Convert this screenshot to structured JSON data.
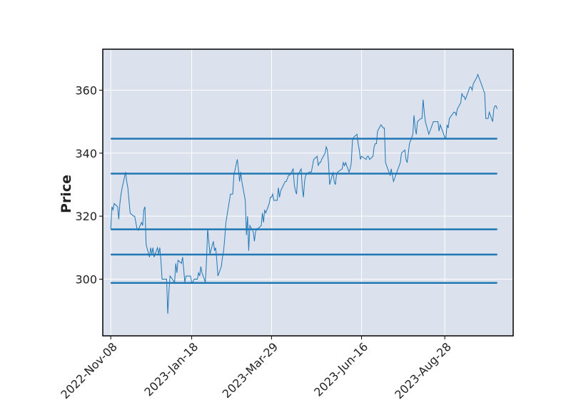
{
  "chart_data": {
    "type": "line",
    "title": "",
    "xlabel": "",
    "ylabel": "Price",
    "x_tick_labels": [
      "2022-Nov-08",
      "2023-Jan-18",
      "2023-Mar-29",
      "2023-Jun-16",
      "2023-Aug-28"
    ],
    "xlim": [
      "2022-Nov-01",
      "2023-Oct-27"
    ],
    "ylim": [
      282,
      373
    ],
    "y_ticks": [
      300,
      320,
      340,
      360
    ],
    "grid": true,
    "colors": {
      "plot_background": "#dce1ee",
      "line": "#1f77b4",
      "grid": "#ffffff",
      "frame": "#000000"
    },
    "series": [
      {
        "values": [
          [
            "2022-Nov-08",
            316
          ],
          [
            "2022-Nov-09",
            323
          ],
          [
            "2022-Nov-10",
            322
          ],
          [
            "2022-Nov-11",
            324
          ],
          [
            "2022-Nov-14",
            323
          ],
          [
            "2022-Nov-15",
            319
          ],
          [
            "2022-Nov-16",
            324
          ],
          [
            "2022-Nov-17",
            327
          ],
          [
            "2022-Nov-18",
            329
          ],
          [
            "2022-Nov-21",
            334
          ],
          [
            "2022-Nov-22",
            331
          ],
          [
            "2022-Nov-23",
            329
          ],
          [
            "2022-Nov-25",
            321
          ],
          [
            "2022-Nov-28",
            320
          ],
          [
            "2022-Nov-29",
            320
          ],
          [
            "2022-Nov-30",
            318
          ],
          [
            "2022-Dec-01",
            316
          ],
          [
            "2022-Dec-02",
            315.5
          ],
          [
            "2022-Dec-05",
            318
          ],
          [
            "2022-Dec-06",
            317
          ],
          [
            "2022-Dec-07",
            322
          ],
          [
            "2022-Dec-08",
            323
          ],
          [
            "2022-Dec-09",
            311
          ],
          [
            "2022-Dec-12",
            307
          ],
          [
            "2022-Dec-13",
            310
          ],
          [
            "2022-Dec-14",
            308
          ],
          [
            "2022-Dec-15",
            310
          ],
          [
            "2022-Dec-16",
            307
          ],
          [
            "2022-Dec-19",
            310
          ],
          [
            "2022-Dec-20",
            308
          ],
          [
            "2022-Dec-21",
            310
          ],
          [
            "2022-Dec-22",
            306
          ],
          [
            "2022-Dec-23",
            300
          ],
          [
            "2022-Dec-27",
            300
          ],
          [
            "2022-Dec-28",
            289
          ],
          [
            "2022-Dec-29",
            296
          ],
          [
            "2022-Dec-30",
            301
          ],
          [
            "2023-Jan-03",
            299
          ],
          [
            "2023-Jan-04",
            305
          ],
          [
            "2023-Jan-05",
            302
          ],
          [
            "2023-Jan-06",
            306
          ],
          [
            "2023-Jan-09",
            305
          ],
          [
            "2023-Jan-10",
            307
          ],
          [
            "2023-Jan-11",
            303
          ],
          [
            "2023-Jan-12",
            299
          ],
          [
            "2023-Jan-13",
            301
          ],
          [
            "2023-Jan-17",
            301
          ],
          [
            "2023-Jan-18",
            299
          ],
          [
            "2023-Jan-19",
            299
          ],
          [
            "2023-Jan-20",
            300
          ],
          [
            "2023-Jan-23",
            300
          ],
          [
            "2023-Jan-24",
            302
          ],
          [
            "2023-Jan-25",
            301
          ],
          [
            "2023-Jan-26",
            304
          ],
          [
            "2023-Jan-27",
            302
          ],
          [
            "2023-Jan-30",
            299
          ],
          [
            "2023-Jan-31",
            306
          ],
          [
            "2023-Feb-01",
            316
          ],
          [
            "2023-Feb-02",
            312
          ],
          [
            "2023-Feb-03",
            308
          ],
          [
            "2023-Feb-06",
            312
          ],
          [
            "2023-Feb-07",
            309
          ],
          [
            "2023-Feb-08",
            310
          ],
          [
            "2023-Feb-09",
            306
          ],
          [
            "2023-Feb-10",
            301
          ],
          [
            "2023-Feb-13",
            304
          ],
          [
            "2023-Feb-14",
            307
          ],
          [
            "2023-Feb-15",
            309
          ],
          [
            "2023-Feb-16",
            313
          ],
          [
            "2023-Feb-17",
            318
          ],
          [
            "2023-Feb-21",
            327
          ],
          [
            "2023-Feb-22",
            327
          ],
          [
            "2023-Feb-23",
            327
          ],
          [
            "2023-Feb-24",
            333
          ],
          [
            "2023-Feb-27",
            338
          ],
          [
            "2023-Feb-28",
            335
          ],
          [
            "2023-Mar-01",
            331
          ],
          [
            "2023-Mar-02",
            334
          ],
          [
            "2023-Mar-03",
            331
          ],
          [
            "2023-Mar-06",
            325
          ],
          [
            "2023-Mar-07",
            314
          ],
          [
            "2023-Mar-08",
            320
          ],
          [
            "2023-Mar-09",
            309
          ],
          [
            "2023-Mar-10",
            317
          ],
          [
            "2023-Mar-13",
            315
          ],
          [
            "2023-Mar-14",
            312
          ],
          [
            "2023-Mar-15",
            315
          ],
          [
            "2023-Mar-16",
            316
          ],
          [
            "2023-Mar-17",
            316
          ],
          [
            "2023-Mar-20",
            317
          ],
          [
            "2023-Mar-21",
            321
          ],
          [
            "2023-Mar-22",
            318
          ],
          [
            "2023-Mar-23",
            322
          ],
          [
            "2023-Mar-24",
            321
          ],
          [
            "2023-Mar-27",
            324
          ],
          [
            "2023-Mar-28",
            326
          ],
          [
            "2023-Mar-29",
            326
          ],
          [
            "2023-Mar-30",
            327
          ],
          [
            "2023-Mar-31",
            325
          ],
          [
            "2023-Apr-03",
            325
          ],
          [
            "2023-Apr-04",
            329
          ],
          [
            "2023-Apr-05",
            326
          ],
          [
            "2023-Apr-06",
            328
          ],
          [
            "2023-Apr-10",
            331
          ],
          [
            "2023-Apr-11",
            331
          ],
          [
            "2023-Apr-12",
            332
          ],
          [
            "2023-Apr-13",
            333
          ],
          [
            "2023-Apr-14",
            333
          ],
          [
            "2023-Apr-17",
            335
          ],
          [
            "2023-Apr-18",
            330
          ],
          [
            "2023-Apr-19",
            328
          ],
          [
            "2023-Apr-20",
            327
          ],
          [
            "2023-Apr-21",
            333
          ],
          [
            "2023-Apr-24",
            335
          ],
          [
            "2023-Apr-25",
            329
          ],
          [
            "2023-Apr-26",
            326
          ],
          [
            "2023-Apr-27",
            331
          ],
          [
            "2023-Apr-28",
            333
          ],
          [
            "2023-May-01",
            334
          ],
          [
            "2023-May-02",
            334
          ],
          [
            "2023-May-03",
            334
          ],
          [
            "2023-May-04",
            336
          ],
          [
            "2023-May-05",
            338
          ],
          [
            "2023-May-08",
            339
          ],
          [
            "2023-May-09",
            336
          ],
          [
            "2023-May-10",
            337
          ],
          [
            "2023-May-11",
            337
          ],
          [
            "2023-May-12",
            338
          ],
          [
            "2023-May-15",
            340
          ],
          [
            "2023-May-16",
            342
          ],
          [
            "2023-May-17",
            341
          ],
          [
            "2023-May-18",
            337
          ],
          [
            "2023-May-19",
            330
          ],
          [
            "2023-May-22",
            334
          ],
          [
            "2023-May-23",
            331
          ],
          [
            "2023-May-24",
            330
          ],
          [
            "2023-May-25",
            333
          ],
          [
            "2023-May-26",
            334
          ],
          [
            "2023-May-30",
            335
          ],
          [
            "2023-May-31",
            337
          ],
          [
            "2023-Jun-01",
            336
          ],
          [
            "2023-Jun-02",
            337
          ],
          [
            "2023-Jun-05",
            334
          ],
          [
            "2023-Jun-06",
            335
          ],
          [
            "2023-Jun-07",
            337
          ],
          [
            "2023-Jun-08",
            344
          ],
          [
            "2023-Jun-09",
            345
          ],
          [
            "2023-Jun-12",
            346
          ],
          [
            "2023-Jun-13",
            343
          ],
          [
            "2023-Jun-14",
            341
          ],
          [
            "2023-Jun-15",
            338
          ],
          [
            "2023-Jun-16",
            339
          ],
          [
            "2023-Jun-20",
            338
          ],
          [
            "2023-Jun-21",
            339
          ],
          [
            "2023-Jun-22",
            339
          ],
          [
            "2023-Jun-23",
            338
          ],
          [
            "2023-Jun-26",
            339
          ],
          [
            "2023-Jun-27",
            342
          ],
          [
            "2023-Jun-28",
            343
          ],
          [
            "2023-Jun-29",
            343
          ],
          [
            "2023-Jun-30",
            347
          ],
          [
            "2023-Jul-03",
            349
          ],
          [
            "2023-Jul-05",
            348
          ],
          [
            "2023-Jul-06",
            348
          ],
          [
            "2023-Jul-07",
            337
          ],
          [
            "2023-Jul-10",
            334
          ],
          [
            "2023-Jul-11",
            333
          ],
          [
            "2023-Jul-12",
            335
          ],
          [
            "2023-Jul-13",
            333
          ],
          [
            "2023-Jul-14",
            331
          ],
          [
            "2023-Jul-17",
            334
          ],
          [
            "2023-Jul-18",
            335
          ],
          [
            "2023-Jul-19",
            336
          ],
          [
            "2023-Jul-20",
            337
          ],
          [
            "2023-Jul-21",
            340
          ],
          [
            "2023-Jul-24",
            341
          ],
          [
            "2023-Jul-25",
            338
          ],
          [
            "2023-Jul-26",
            337
          ],
          [
            "2023-Jul-27",
            340
          ],
          [
            "2023-Jul-28",
            343
          ],
          [
            "2023-Jul-31",
            346
          ],
          [
            "2023-Aug-01",
            352
          ],
          [
            "2023-Aug-02",
            348
          ],
          [
            "2023-Aug-03",
            346
          ],
          [
            "2023-Aug-04",
            350
          ],
          [
            "2023-Aug-07",
            351
          ],
          [
            "2023-Aug-08",
            351
          ],
          [
            "2023-Aug-09",
            357
          ],
          [
            "2023-Aug-10",
            353
          ],
          [
            "2023-Aug-11",
            350
          ],
          [
            "2023-Aug-14",
            346
          ],
          [
            "2023-Aug-15",
            347
          ],
          [
            "2023-Aug-16",
            348
          ],
          [
            "2023-Aug-17",
            349
          ],
          [
            "2023-Aug-18",
            350
          ],
          [
            "2023-Aug-21",
            350
          ],
          [
            "2023-Aug-22",
            350
          ],
          [
            "2023-Aug-23",
            347
          ],
          [
            "2023-Aug-24",
            349
          ],
          [
            "2023-Aug-25",
            348
          ],
          [
            "2023-Aug-28",
            345
          ],
          [
            "2023-Aug-29",
            345
          ],
          [
            "2023-Aug-30",
            349
          ],
          [
            "2023-Aug-31",
            348
          ],
          [
            "2023-Sep-01",
            351
          ],
          [
            "2023-Sep-05",
            353
          ],
          [
            "2023-Sep-06",
            353
          ],
          [
            "2023-Sep-07",
            352
          ],
          [
            "2023-Sep-08",
            354
          ],
          [
            "2023-Sep-11",
            356
          ],
          [
            "2023-Sep-12",
            359
          ],
          [
            "2023-Sep-13",
            358
          ],
          [
            "2023-Sep-14",
            358
          ],
          [
            "2023-Sep-15",
            357
          ],
          [
            "2023-Sep-18",
            360
          ],
          [
            "2023-Sep-19",
            361
          ],
          [
            "2023-Sep-20",
            361
          ],
          [
            "2023-Sep-21",
            360
          ],
          [
            "2023-Sep-22",
            362
          ],
          [
            "2023-Sep-25",
            364
          ],
          [
            "2023-Sep-26",
            365
          ],
          [
            "2023-Sep-27",
            364
          ],
          [
            "2023-Sep-28",
            363
          ],
          [
            "2023-Sep-29",
            362
          ],
          [
            "2023-Oct-02",
            359
          ],
          [
            "2023-Oct-03",
            351
          ],
          [
            "2023-Oct-04",
            351
          ],
          [
            "2023-Oct-05",
            351
          ],
          [
            "2023-Oct-06",
            353
          ],
          [
            "2023-Oct-09",
            350
          ],
          [
            "2023-Oct-10",
            354
          ],
          [
            "2023-Oct-11",
            355
          ],
          [
            "2023-Oct-12",
            355
          ],
          [
            "2023-Oct-13",
            354
          ]
        ]
      }
    ],
    "hlines": [
      298.8,
      307.8,
      315.8,
      333.5,
      344.6
    ],
    "hline_range": [
      "2022-Nov-08",
      "2023-Oct-13"
    ]
  }
}
